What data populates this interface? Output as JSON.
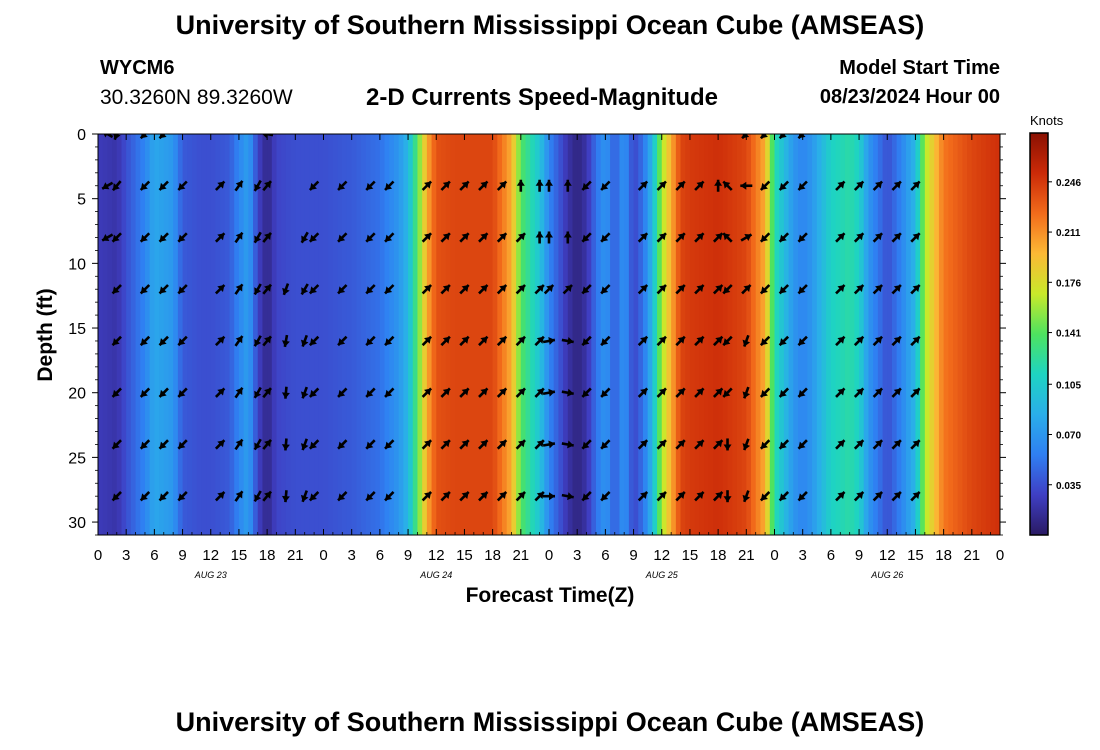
{
  "header": {
    "title": "University of Southern Mississippi Ocean Cube (AMSEAS)",
    "station": "WYCM6",
    "coordinates": "30.3260N  89.3260W",
    "subtitle": "2-D Currents Speed-Magnitude",
    "model_start_label": "Model Start Time",
    "model_start_value": "08/23/2024 Hour 00"
  },
  "footer": {
    "title": "University of Southern Mississippi Ocean Cube (AMSEAS)"
  },
  "colors": {
    "colormap": [
      "#2a1a63",
      "#3f3fc4",
      "#2f7ff2",
      "#2aaee9",
      "#1ed4c2",
      "#4ee35f",
      "#c9e92a",
      "#fcb935",
      "#f26b1b",
      "#cb2a08",
      "#8a1102"
    ],
    "arrow": "#000000"
  },
  "chart_data": {
    "type": "heatmap",
    "title": "2-D Currents Speed-Magnitude",
    "xlabel": "Forecast Time(Z)",
    "ylabel": "Depth (ft)",
    "x_range_hours": [
      0,
      96
    ],
    "ylim": [
      0,
      31
    ],
    "x_tick_labels": [
      "0",
      "3",
      "6",
      "9",
      "12",
      "15",
      "18",
      "21",
      "0",
      "3",
      "6",
      "9",
      "12",
      "15",
      "18",
      "21",
      "0",
      "3",
      "6",
      "9",
      "12",
      "15",
      "18",
      "21",
      "0",
      "3",
      "6",
      "9",
      "12",
      "15",
      "18",
      "21",
      "0"
    ],
    "x_tick_hours": [
      0,
      3,
      6,
      9,
      12,
      15,
      18,
      21,
      24,
      27,
      30,
      33,
      36,
      39,
      42,
      45,
      48,
      51,
      54,
      57,
      60,
      63,
      66,
      69,
      72,
      75,
      78,
      81,
      84,
      87,
      90,
      93,
      96
    ],
    "day_labels": [
      {
        "label": "AUG 23",
        "hour": 12
      },
      {
        "label": "AUG 24",
        "hour": 36
      },
      {
        "label": "AUG 25",
        "hour": 60
      },
      {
        "label": "AUG 26",
        "hour": 84
      }
    ],
    "y_tick_labels": [
      "0",
      "5",
      "10",
      "15",
      "20",
      "25",
      "30"
    ],
    "y_ticks": [
      0,
      5,
      10,
      15,
      20,
      25,
      30
    ],
    "colorbar": {
      "title": "Knots",
      "tick_labels": [
        "0.246",
        "0.211",
        "0.176",
        "0.141",
        "0.105",
        "0.070",
        "0.035"
      ],
      "tick_values": [
        0.246,
        0.211,
        0.176,
        0.141,
        0.105,
        0.07,
        0.035
      ],
      "range": [
        0,
        0.28
      ]
    },
    "speed_by_hour": {
      "hours": [
        0,
        2,
        3,
        5,
        6,
        8,
        9,
        11,
        12,
        14,
        15,
        16,
        17,
        18,
        19,
        21,
        24,
        27,
        30,
        32,
        33,
        34,
        35,
        36,
        38,
        39,
        42,
        44,
        45,
        47,
        48,
        49,
        50,
        51,
        52,
        53,
        54,
        55,
        56,
        57,
        58,
        59,
        60,
        62,
        63,
        66,
        69,
        71,
        72,
        74,
        75,
        76,
        77,
        78,
        80,
        81,
        82,
        84,
        85,
        87,
        88,
        90,
        93,
        96
      ],
      "knots": [
        0.025,
        0.02,
        0.035,
        0.06,
        0.08,
        0.07,
        0.04,
        0.035,
        0.035,
        0.04,
        0.06,
        0.075,
        0.03,
        0.01,
        0.03,
        0.035,
        0.035,
        0.04,
        0.05,
        0.07,
        0.09,
        0.14,
        0.2,
        0.235,
        0.24,
        0.24,
        0.24,
        0.2,
        0.14,
        0.1,
        0.06,
        0.04,
        0.02,
        0.008,
        0.02,
        0.05,
        0.07,
        0.04,
        0.07,
        0.03,
        0.05,
        0.09,
        0.16,
        0.24,
        0.245,
        0.25,
        0.24,
        0.2,
        0.12,
        0.07,
        0.06,
        0.07,
        0.09,
        0.11,
        0.12,
        0.11,
        0.07,
        0.035,
        0.05,
        0.09,
        0.16,
        0.22,
        0.24,
        0.25
      ]
    },
    "arrow_depths_ft": [
      0,
      4,
      8,
      12,
      16,
      20,
      24,
      28
    ],
    "arrow_columns": [
      {
        "hour": 1,
        "dirs": [
          300,
          240,
          240,
          null,
          null,
          null,
          null,
          null
        ]
      },
      {
        "hour": 2,
        "dirs": [
          200,
          220,
          225,
          225,
          225,
          225,
          225,
          225
        ]
      },
      {
        "hour": 5,
        "dirs": [
          225,
          225,
          225,
          225,
          225,
          225,
          225,
          225
        ]
      },
      {
        "hour": 7,
        "dirs": [
          225,
          225,
          225,
          225,
          225,
          225,
          225,
          225
        ]
      },
      {
        "hour": 9,
        "dirs": [
          null,
          225,
          225,
          225,
          225,
          225,
          225,
          225
        ]
      },
      {
        "hour": 13,
        "dirs": [
          null,
          45,
          45,
          45,
          45,
          45,
          45,
          45
        ]
      },
      {
        "hour": 15,
        "dirs": [
          null,
          35,
          35,
          35,
          35,
          35,
          35,
          35
        ]
      },
      {
        "hour": 17,
        "dirs": [
          null,
          210,
          210,
          210,
          210,
          210,
          210,
          210
        ]
      },
      {
        "hour": 18,
        "dirs": [
          280,
          40,
          40,
          40,
          40,
          40,
          40,
          40
        ]
      },
      {
        "hour": 20,
        "dirs": [
          null,
          null,
          null,
          200,
          190,
          185,
          185,
          185
        ]
      },
      {
        "hour": 22,
        "dirs": [
          null,
          null,
          210,
          210,
          200,
          200,
          200,
          200
        ]
      },
      {
        "hour": 23,
        "dirs": [
          null,
          225,
          225,
          225,
          225,
          225,
          225,
          225
        ]
      },
      {
        "hour": 26,
        "dirs": [
          null,
          225,
          225,
          225,
          225,
          225,
          225,
          225
        ]
      },
      {
        "hour": 29,
        "dirs": [
          null,
          225,
          225,
          225,
          225,
          225,
          225,
          225
        ]
      },
      {
        "hour": 31,
        "dirs": [
          null,
          225,
          225,
          225,
          225,
          225,
          225,
          225
        ]
      },
      {
        "hour": 35,
        "dirs": [
          null,
          45,
          45,
          45,
          45,
          45,
          45,
          45
        ]
      },
      {
        "hour": 37,
        "dirs": [
          null,
          45,
          45,
          45,
          45,
          45,
          45,
          45
        ]
      },
      {
        "hour": 39,
        "dirs": [
          null,
          45,
          45,
          45,
          45,
          45,
          45,
          45
        ]
      },
      {
        "hour": 41,
        "dirs": [
          null,
          45,
          45,
          45,
          45,
          45,
          45,
          45
        ]
      },
      {
        "hour": 43,
        "dirs": [
          null,
          45,
          45,
          45,
          45,
          45,
          45,
          45
        ]
      },
      {
        "hour": 45,
        "dirs": [
          null,
          0,
          45,
          45,
          45,
          45,
          45,
          45
        ]
      },
      {
        "hour": 47,
        "dirs": [
          null,
          0,
          0,
          45,
          45,
          45,
          45,
          45
        ]
      },
      {
        "hour": 48,
        "dirs": [
          null,
          0,
          0,
          45,
          80,
          80,
          80,
          90
        ]
      },
      {
        "hour": 50,
        "dirs": [
          null,
          0,
          0,
          45,
          100,
          100,
          100,
          100
        ]
      },
      {
        "hour": 52,
        "dirs": [
          null,
          225,
          225,
          225,
          225,
          225,
          225,
          225
        ]
      },
      {
        "hour": 54,
        "dirs": [
          null,
          225,
          225,
          225,
          225,
          225,
          225,
          225
        ]
      },
      {
        "hour": 58,
        "dirs": [
          null,
          45,
          45,
          45,
          45,
          45,
          45,
          45
        ]
      },
      {
        "hour": 60,
        "dirs": [
          null,
          45,
          45,
          45,
          45,
          45,
          45,
          45
        ]
      },
      {
        "hour": 62,
        "dirs": [
          null,
          45,
          45,
          45,
          45,
          45,
          45,
          45
        ]
      },
      {
        "hour": 64,
        "dirs": [
          null,
          45,
          45,
          45,
          45,
          45,
          45,
          45
        ]
      },
      {
        "hour": 66,
        "dirs": [
          null,
          0,
          45,
          45,
          45,
          45,
          45,
          45
        ]
      },
      {
        "hour": 67,
        "dirs": [
          null,
          315,
          315,
          225,
          225,
          225,
          180,
          180
        ]
      },
      {
        "hour": 69,
        "dirs": [
          225,
          270,
          60,
          45,
          200,
          200,
          200,
          200
        ]
      },
      {
        "hour": 71,
        "dirs": [
          225,
          225,
          225,
          225,
          225,
          225,
          225,
          225
        ]
      },
      {
        "hour": 73,
        "dirs": [
          225,
          225,
          225,
          225,
          225,
          225,
          225,
          225
        ]
      },
      {
        "hour": 75,
        "dirs": [
          225,
          225,
          225,
          225,
          225,
          225,
          225,
          225
        ]
      },
      {
        "hour": 79,
        "dirs": [
          null,
          45,
          45,
          45,
          45,
          45,
          45,
          45
        ]
      },
      {
        "hour": 81,
        "dirs": [
          null,
          45,
          45,
          45,
          45,
          45,
          45,
          45
        ]
      },
      {
        "hour": 83,
        "dirs": [
          null,
          45,
          45,
          45,
          45,
          45,
          45,
          45
        ]
      },
      {
        "hour": 85,
        "dirs": [
          null,
          45,
          45,
          45,
          45,
          45,
          45,
          45
        ]
      },
      {
        "hour": 87,
        "dirs": [
          null,
          45,
          45,
          45,
          45,
          45,
          45,
          45
        ]
      }
    ]
  }
}
